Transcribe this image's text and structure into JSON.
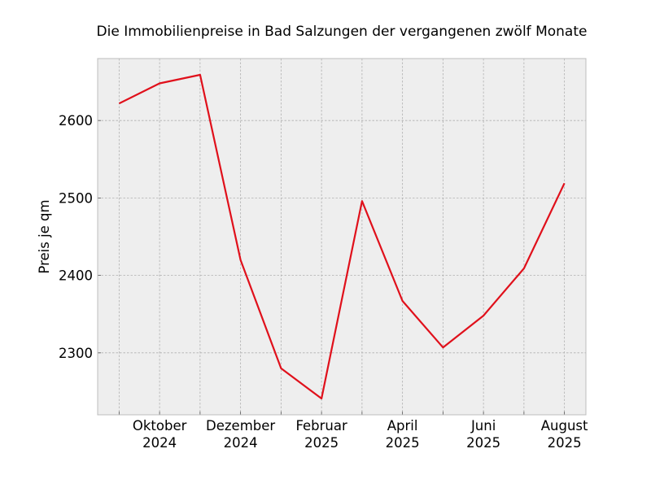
{
  "chart_data": {
    "type": "line",
    "title": "Die Immobilienpreise in Bad Salzungen der vergangenen zwölf Monate",
    "xlabel": "",
    "ylabel": "Preis je qm",
    "x": [
      "2024-09",
      "2024-10",
      "2024-11",
      "2024-12",
      "2025-01",
      "2025-02",
      "2025-03",
      "2025-04",
      "2025-05",
      "2025-06",
      "2025-07",
      "2025-08"
    ],
    "series": [
      {
        "values": [
          2622,
          2648,
          2659,
          2420,
          2280,
          2241,
          2496,
          2367,
          2307,
          2348,
          2409,
          2519
        ]
      }
    ],
    "x_tick_labels": [
      {
        "x": "2024-10",
        "line1": "Oktober",
        "line2": "2024"
      },
      {
        "x": "2024-12",
        "line1": "Dezember",
        "line2": "2024"
      },
      {
        "x": "2025-02",
        "line1": "Februar",
        "line2": "2025"
      },
      {
        "x": "2025-04",
        "line1": "April",
        "line2": "2025"
      },
      {
        "x": "2025-06",
        "line1": "Juni",
        "line2": "2025"
      },
      {
        "x": "2025-08",
        "line1": "August",
        "line2": "2025"
      }
    ],
    "yticks": [
      2300,
      2400,
      2500,
      2600
    ],
    "ylim": [
      2220,
      2680
    ],
    "xlim": [
      "2024-08",
      "2025-08"
    ],
    "grid": true,
    "colors": {
      "line": "#e0101b",
      "plot_background": "#eeeeee",
      "grid": "#b0b0b0",
      "frame": "#bcbcbc"
    }
  }
}
